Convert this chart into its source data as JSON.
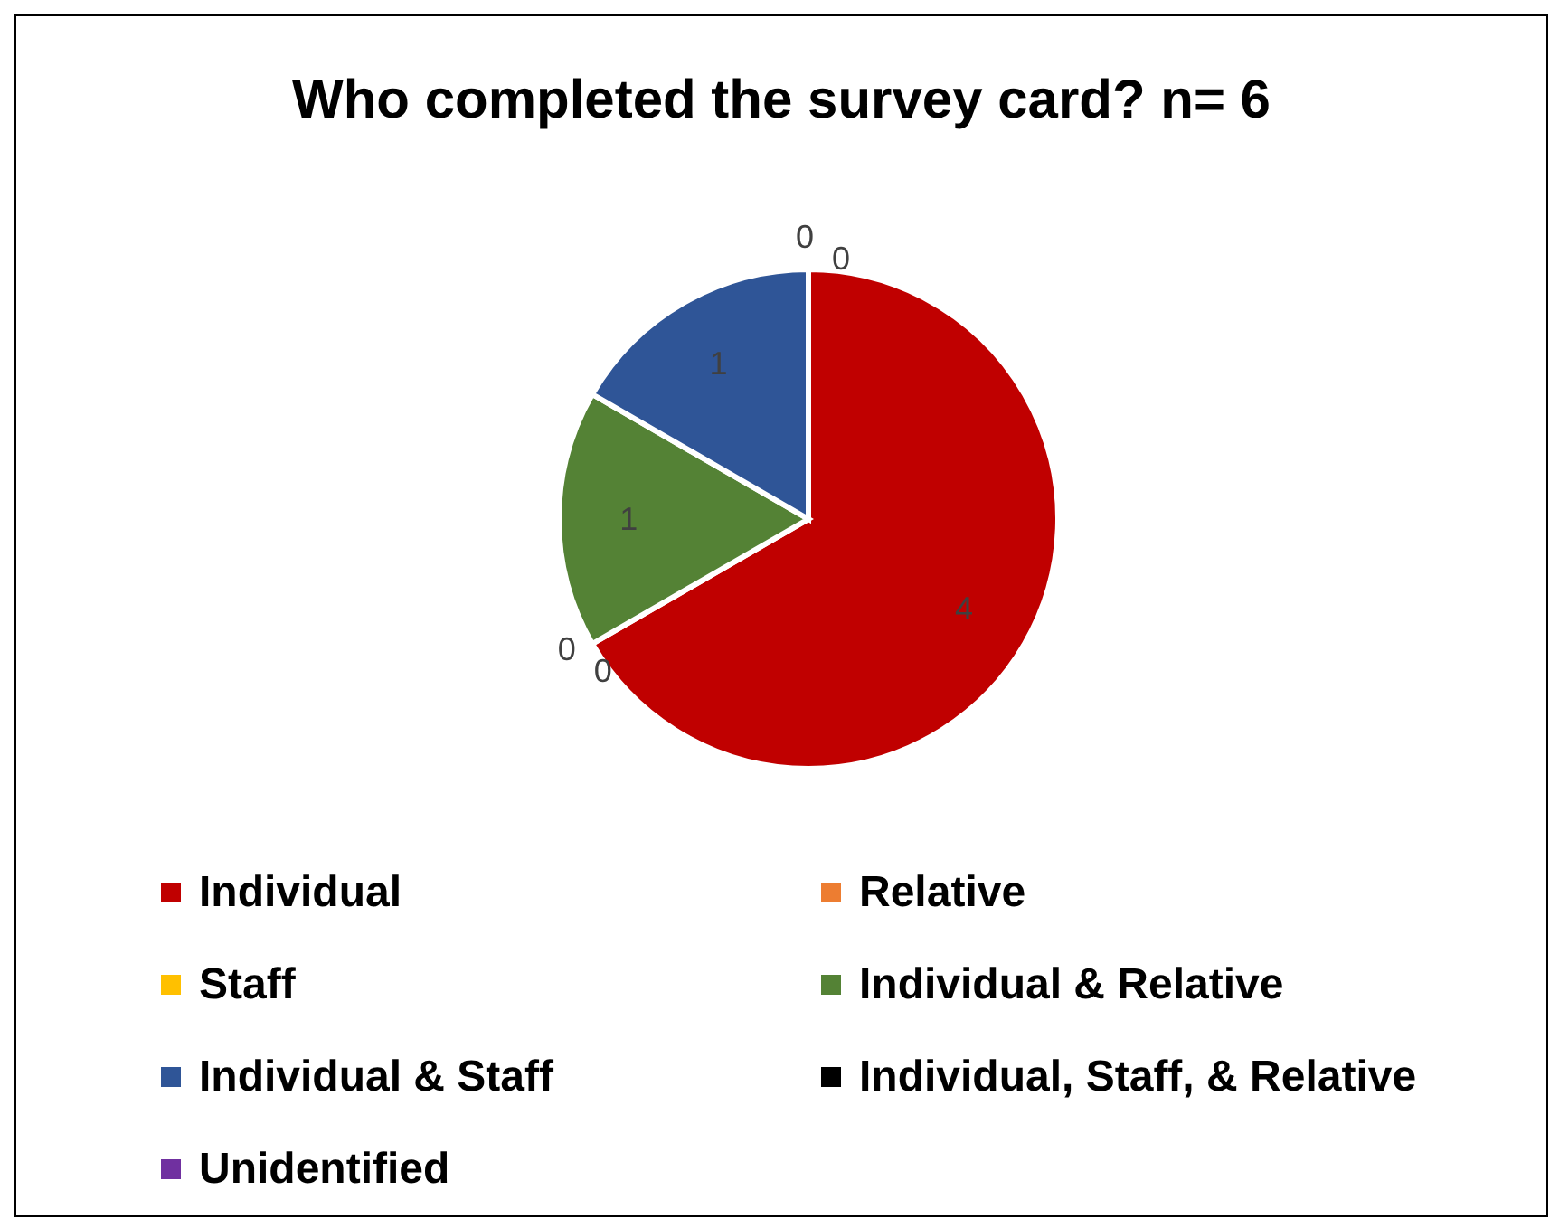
{
  "chart_data": {
    "type": "pie",
    "title": "Who completed the survey card? n= 6",
    "categories": [
      "Individual",
      "Relative",
      "Staff",
      "Individual & Relative",
      "Individual & Staff",
      "Individual, Staff, & Relative",
      "Unidentified"
    ],
    "values": [
      4,
      0,
      0,
      1,
      1,
      0,
      0
    ],
    "colors": [
      "#c00000",
      "#ed7d31",
      "#ffc000",
      "#548235",
      "#2f5597",
      "#000000",
      "#7030a0"
    ],
    "value_labels": [
      "4",
      "0",
      "0",
      "1",
      "1",
      "0",
      "0"
    ],
    "legend": "bottom"
  }
}
